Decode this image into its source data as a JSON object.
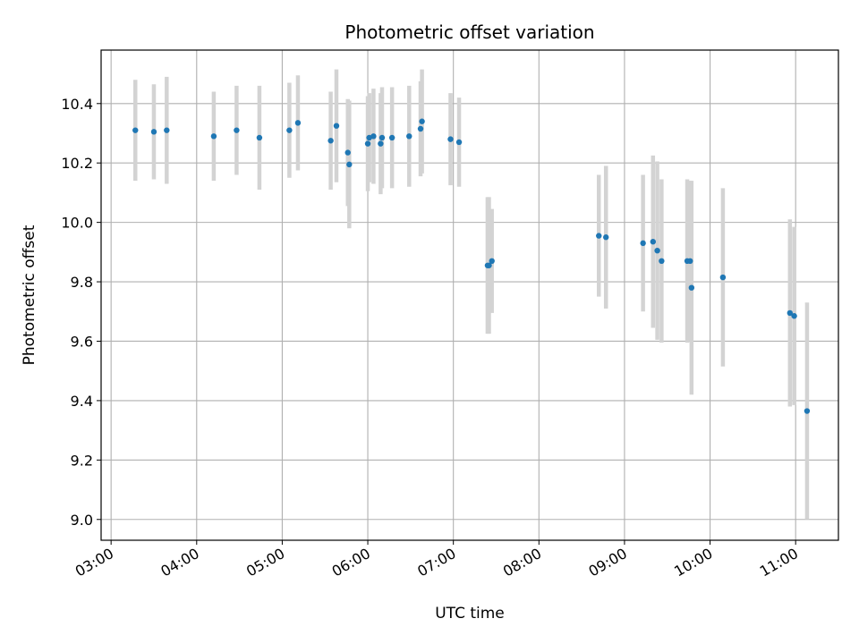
{
  "chart_data": {
    "type": "scatter",
    "title": "Photometric offset variation",
    "xlabel": "UTC time",
    "ylabel": "Photometric offset",
    "x_ticks": [
      "03:00",
      "04:00",
      "05:00",
      "06:00",
      "07:00",
      "08:00",
      "09:00",
      "10:00",
      "11:00"
    ],
    "y_ticks": [
      "9.0",
      "9.2",
      "9.4",
      "9.6",
      "9.8",
      "10.0",
      "10.2",
      "10.4"
    ],
    "xlim": [
      "02:53",
      "11:30"
    ],
    "ylim": [
      8.93,
      10.58
    ],
    "grid": true,
    "legend": "none",
    "colors": {
      "point": "#1f77b4",
      "errorbar": "#d3d3d3",
      "grid": "#b0b0b0"
    },
    "points": [
      {
        "t": "03:17",
        "y": 10.31,
        "err": 0.17
      },
      {
        "t": "03:30",
        "y": 10.305,
        "err": 0.16
      },
      {
        "t": "03:39",
        "y": 10.31,
        "err": 0.18
      },
      {
        "t": "04:12",
        "y": 10.29,
        "err": 0.15
      },
      {
        "t": "04:28",
        "y": 10.31,
        "err": 0.15
      },
      {
        "t": "04:44",
        "y": 10.285,
        "err": 0.175
      },
      {
        "t": "05:05",
        "y": 10.31,
        "err": 0.16
      },
      {
        "t": "05:11",
        "y": 10.335,
        "err": 0.16
      },
      {
        "t": "05:34",
        "y": 10.275,
        "err": 0.165
      },
      {
        "t": "05:38",
        "y": 10.325,
        "err": 0.19
      },
      {
        "t": "05:46",
        "y": 10.235,
        "err": 0.18
      },
      {
        "t": "05:47",
        "y": 10.195,
        "err": 0.215
      },
      {
        "t": "06:00",
        "y": 10.265,
        "err": 0.16
      },
      {
        "t": "06:01",
        "y": 10.285,
        "err": 0.15
      },
      {
        "t": "06:04",
        "y": 10.29,
        "err": 0.16
      },
      {
        "t": "06:09",
        "y": 10.265,
        "err": 0.17
      },
      {
        "t": "06:10",
        "y": 10.285,
        "err": 0.17
      },
      {
        "t": "06:17",
        "y": 10.285,
        "err": 0.17
      },
      {
        "t": "06:29",
        "y": 10.29,
        "err": 0.17
      },
      {
        "t": "06:37",
        "y": 10.315,
        "err": 0.16
      },
      {
        "t": "06:38",
        "y": 10.34,
        "err": 0.175
      },
      {
        "t": "06:58",
        "y": 10.28,
        "err": 0.155
      },
      {
        "t": "07:04",
        "y": 10.27,
        "err": 0.15
      },
      {
        "t": "07:24",
        "y": 9.855,
        "err": 0.23
      },
      {
        "t": "07:25",
        "y": 9.855,
        "err": 0.23
      },
      {
        "t": "07:27",
        "y": 9.87,
        "err": 0.175
      },
      {
        "t": "08:42",
        "y": 9.955,
        "err": 0.205
      },
      {
        "t": "08:47",
        "y": 9.95,
        "err": 0.24
      },
      {
        "t": "09:13",
        "y": 9.93,
        "err": 0.23
      },
      {
        "t": "09:20",
        "y": 9.935,
        "err": 0.29
      },
      {
        "t": "09:23",
        "y": 9.905,
        "err": 0.3
      },
      {
        "t": "09:26",
        "y": 9.87,
        "err": 0.275
      },
      {
        "t": "09:44",
        "y": 9.87,
        "err": 0.275
      },
      {
        "t": "09:46",
        "y": 9.87,
        "err": 0.27
      },
      {
        "t": "09:47",
        "y": 9.78,
        "err": 0.36
      },
      {
        "t": "10:09",
        "y": 9.815,
        "err": 0.3
      },
      {
        "t": "10:56",
        "y": 9.695,
        "err": 0.315
      },
      {
        "t": "10:59",
        "y": 9.685,
        "err": 0.3
      },
      {
        "t": "11:08",
        "y": 9.365,
        "err": 0.365
      }
    ]
  }
}
